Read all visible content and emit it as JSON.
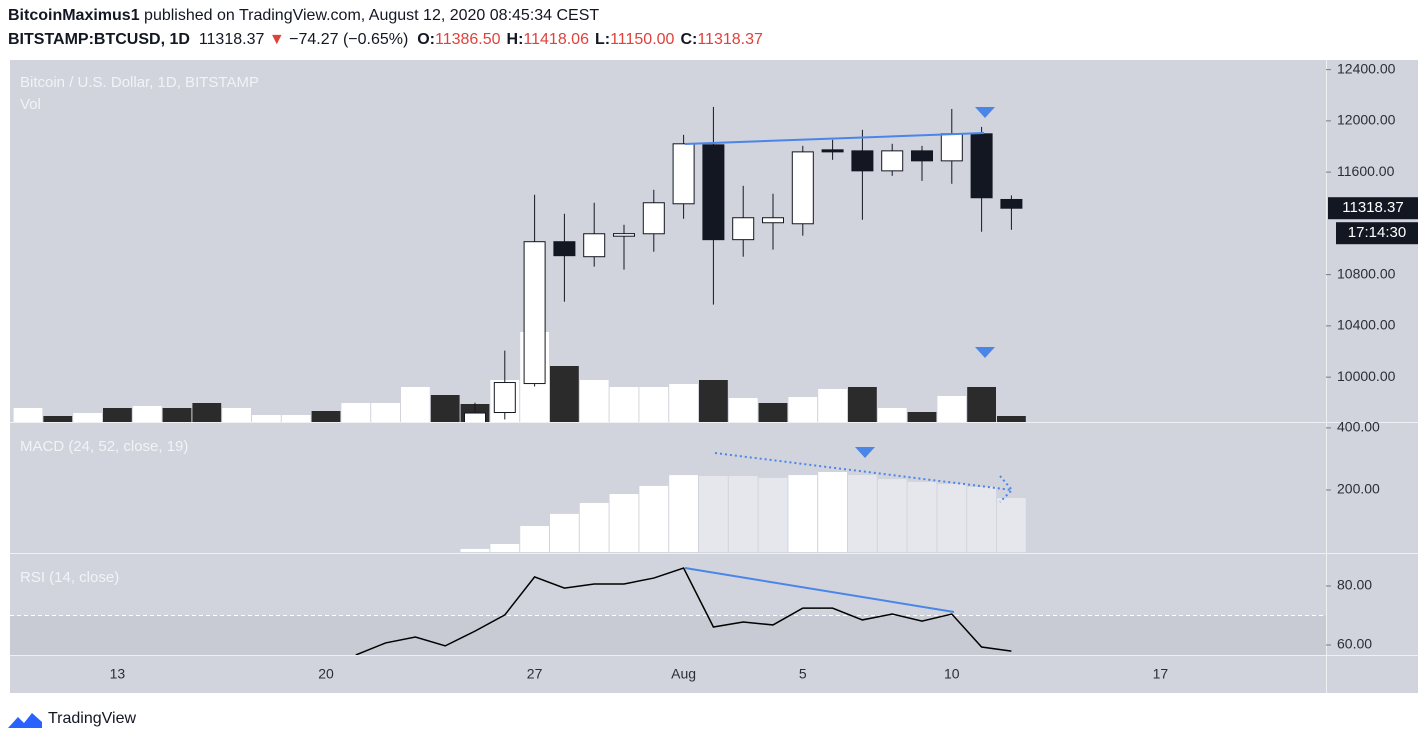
{
  "header": {
    "author": "BitcoinMaximus1",
    "published": "published on TradingView.com, August 12, 2020 08:45:34 CEST",
    "symbol": "BITSTAMP:BTCUSD, 1D",
    "last": "11318.37",
    "arrow": "▼",
    "change": "−74.27 (−0.65%)",
    "ohlc": [
      {
        "label": "O:",
        "value": "11386.50"
      },
      {
        "label": "H:",
        "value": "11418.06"
      },
      {
        "label": "L:",
        "value": "11150.00"
      },
      {
        "label": "C:",
        "value": "11318.37"
      }
    ]
  },
  "footer": {
    "brand": "TradingView"
  },
  "chart_data": [
    {
      "type": "candlestick",
      "title": "Bitcoin / U.S. Dollar, 1D, BITSTAMP",
      "countdown": "17:14:30",
      "up_color": "#ffffff",
      "down_color": "#131722",
      "categories": [
        null,
        null,
        null,
        "13",
        null,
        null,
        null,
        null,
        null,
        null,
        "20",
        null,
        null,
        null,
        null,
        null,
        null,
        "27",
        null,
        null,
        null,
        null,
        "Aug",
        null,
        null,
        null,
        "5",
        null,
        null,
        null,
        null,
        "10",
        null,
        null,
        null,
        null,
        null,
        null,
        "17",
        null,
        null,
        null,
        null,
        null
      ],
      "open": [
        null,
        null,
        null,
        null,
        null,
        null,
        null,
        null,
        null,
        null,
        null,
        null,
        null,
        null,
        null,
        9550,
        9724,
        9950,
        11057,
        10940,
        11100,
        11119,
        11353,
        11813,
        11073,
        11205,
        11197,
        11774,
        11766,
        11610,
        11766,
        11688,
        11899,
        11386.5,
        null,
        null,
        null,
        null,
        null,
        null,
        null,
        null,
        null,
        null
      ],
      "high": [
        null,
        null,
        null,
        null,
        null,
        null,
        null,
        null,
        null,
        null,
        null,
        null,
        null,
        null,
        null,
        9800,
        10207,
        11423,
        11275,
        11361,
        11189,
        11462,
        11891,
        12109,
        11493,
        11431,
        11805,
        11852,
        11930,
        11821,
        11805,
        12093,
        11953,
        11418.06,
        null,
        null,
        null,
        null,
        null,
        null,
        null,
        null,
        null,
        null
      ],
      "low": [
        null,
        null,
        null,
        null,
        null,
        null,
        null,
        null,
        null,
        null,
        null,
        null,
        null,
        null,
        null,
        9500,
        9670,
        9927,
        10589,
        10862,
        10839,
        10979,
        11236,
        10566,
        10940,
        10995,
        11104,
        11696,
        11228,
        11571,
        11532,
        11509,
        11135,
        11150,
        null,
        null,
        null,
        null,
        null,
        null,
        null,
        null,
        null,
        null
      ],
      "close": [
        null,
        null,
        null,
        null,
        null,
        null,
        null,
        null,
        null,
        null,
        null,
        null,
        null,
        null,
        null,
        9720,
        9958,
        11057,
        10948,
        11119,
        11120,
        11361,
        11821,
        11073,
        11244,
        11244,
        11758,
        11758,
        11610,
        11766,
        11688,
        11899,
        11400,
        11318.37,
        null,
        null,
        null,
        null,
        null,
        null,
        null,
        null,
        null,
        null
      ],
      "ylim": [
        9650,
        12475
      ],
      "yticks": [
        {
          "value": 10000,
          "label": "10000.00"
        },
        {
          "value": 10400,
          "label": "10400.00"
        },
        {
          "value": 10800,
          "label": "10800.00"
        },
        {
          "value": 11600,
          "label": "11600.00"
        },
        {
          "value": 12000,
          "label": "12000.00"
        },
        {
          "value": 12400,
          "label": "12400.00"
        }
      ]
    },
    {
      "type": "bar",
      "title": "Vol",
      "ylim": [
        0,
        362
      ],
      "values": [
        14,
        6,
        9,
        14,
        16,
        14,
        19,
        14,
        7,
        7,
        11,
        19,
        19,
        35,
        27,
        18,
        42,
        90,
        56,
        42,
        35,
        35,
        38,
        42,
        24,
        19,
        25,
        33,
        35,
        14,
        10,
        26,
        35,
        6,
        null,
        null,
        null,
        null,
        null,
        null,
        null,
        null,
        null,
        null
      ],
      "colors": [
        "#ffffff",
        "#2b2b2b",
        "#ffffff",
        "#2b2b2b",
        "#ffffff",
        "#2b2b2b",
        "#2b2b2b",
        "#ffffff",
        "#ffffff",
        "#ffffff",
        "#2b2b2b",
        "#ffffff",
        "#ffffff",
        "#ffffff",
        "#2b2b2b",
        "#2b2b2b",
        "#ffffff",
        "#ffffff",
        "#2b2b2b",
        "#ffffff",
        "#ffffff",
        "#ffffff",
        "#ffffff",
        "#2b2b2b",
        "#ffffff",
        "#2b2b2b",
        "#ffffff",
        "#ffffff",
        "#2b2b2b",
        "#ffffff",
        "#2b2b2b",
        "#ffffff",
        "#2b2b2b",
        "#2b2b2b",
        null,
        null,
        null,
        null,
        null,
        null,
        null,
        null,
        null,
        null
      ]
    },
    {
      "type": "bar",
      "title": "MACD (24, 52, close, 19)",
      "ylim": [
        -3,
        419
      ],
      "yticks": [
        {
          "value": 200,
          "label": "200.00"
        },
        {
          "value": 400,
          "label": "400.00"
        }
      ],
      "values": [
        null,
        null,
        null,
        null,
        null,
        null,
        null,
        null,
        null,
        null,
        null,
        null,
        null,
        null,
        null,
        10,
        26,
        84,
        123,
        158,
        187,
        213,
        248,
        245,
        245,
        239,
        248,
        258,
        248,
        235,
        226,
        219,
        210,
        174,
        null,
        null,
        null,
        null,
        null,
        null,
        null,
        null,
        null,
        null
      ],
      "colors": [
        null,
        null,
        null,
        null,
        null,
        null,
        null,
        null,
        null,
        null,
        null,
        null,
        null,
        null,
        null,
        "#ffffff",
        "#ffffff",
        "#ffffff",
        "#ffffff",
        "#ffffff",
        "#ffffff",
        "#ffffff",
        "#ffffff",
        "#e6e7ec",
        "#e6e7ec",
        "#e6e7ec",
        "#ffffff",
        "#ffffff",
        "#e6e7ec",
        "#e6e7ec",
        "#e6e7ec",
        "#e6e7ec",
        "#e6e7ec",
        "#e6e7ec",
        null,
        null,
        null,
        null,
        null,
        null,
        null,
        null,
        null,
        null
      ]
    },
    {
      "type": "line",
      "title": "RSI (14, close)",
      "color": "#000000",
      "ylim": [
        56.6,
        91.2
      ],
      "level": 70,
      "yticks": [
        {
          "value": 60,
          "label": "60.00"
        },
        {
          "value": 80,
          "label": "80.00"
        }
      ],
      "values": [
        null,
        null,
        null,
        null,
        null,
        null,
        null,
        null,
        null,
        null,
        null,
        56.6,
        60.7,
        62.7,
        59.7,
        64.7,
        70.2,
        83.1,
        79.3,
        80.7,
        80.7,
        82.7,
        86.1,
        66.1,
        67.8,
        66.8,
        72.5,
        72.5,
        68.5,
        70.5,
        68.1,
        70.5,
        59.3,
        57.9,
        null,
        null,
        null,
        null,
        null,
        null,
        null,
        null,
        null,
        null
      ]
    }
  ]
}
